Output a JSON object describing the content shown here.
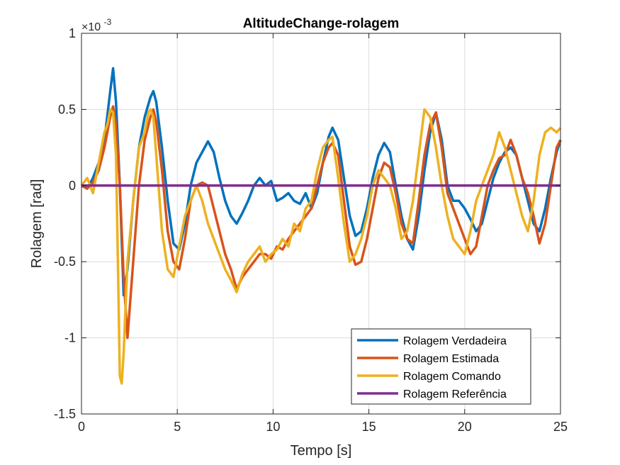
{
  "chart_data": {
    "type": "line",
    "title": "AltitudeChange-rolagem",
    "xlabel": "Tempo [s]",
    "ylabel": "Rolagem [rad]",
    "xlim": [
      0,
      25
    ],
    "ylim": [
      -1.5,
      1
    ],
    "x_ticks": [
      0,
      5,
      10,
      15,
      20,
      25
    ],
    "y_ticks": [
      -1.5,
      -1,
      -0.5,
      0,
      0.5,
      1
    ],
    "x_tick_labels": [
      "0",
      "5",
      "10",
      "15",
      "20",
      "25"
    ],
    "y_tick_labels": [
      "-1.5",
      "-1",
      "-0.5",
      "0",
      "0.5",
      "1"
    ],
    "y_exponent_label": "×10",
    "y_exponent_power": "-3",
    "grid": true,
    "legend_position": "bottom-right",
    "series": [
      {
        "name": "Rolagem Verdadeira",
        "color": "#0072BD",
        "x": [
          0,
          0.3,
          0.6,
          0.9,
          1.2,
          1.5,
          1.65,
          1.8,
          2.0,
          2.2,
          2.4,
          2.7,
          3.0,
          3.3,
          3.6,
          3.75,
          3.9,
          4.2,
          4.5,
          4.8,
          5.1,
          5.4,
          5.7,
          6.0,
          6.3,
          6.6,
          6.9,
          7.2,
          7.5,
          7.8,
          8.1,
          8.4,
          8.7,
          9.0,
          9.3,
          9.6,
          9.9,
          10.2,
          10.5,
          10.8,
          11.1,
          11.4,
          11.7,
          12.0,
          12.3,
          12.6,
          12.9,
          13.1,
          13.4,
          13.7,
          14.0,
          14.3,
          14.6,
          14.9,
          15.2,
          15.5,
          15.8,
          16.1,
          16.4,
          16.7,
          17.0,
          17.3,
          17.6,
          17.9,
          18.2,
          18.5,
          18.8,
          19.1,
          19.4,
          19.7,
          20.0,
          20.3,
          20.6,
          20.9,
          21.2,
          21.5,
          21.8,
          22.1,
          22.4,
          22.7,
          23.0,
          23.3,
          23.6,
          23.9,
          24.2,
          24.5,
          24.8,
          25.0
        ],
        "values": [
          0,
          -0.02,
          0.05,
          0.15,
          0.3,
          0.62,
          0.77,
          0.55,
          0.0,
          -0.72,
          -0.55,
          -0.1,
          0.25,
          0.45,
          0.58,
          0.62,
          0.55,
          0.25,
          -0.1,
          -0.38,
          -0.42,
          -0.25,
          0.0,
          0.15,
          0.22,
          0.29,
          0.22,
          0.05,
          -0.1,
          -0.2,
          -0.25,
          -0.18,
          -0.1,
          0.0,
          0.05,
          0.0,
          0.03,
          -0.1,
          -0.08,
          -0.05,
          -0.1,
          -0.12,
          -0.05,
          -0.15,
          -0.05,
          0.15,
          0.32,
          0.38,
          0.3,
          0.05,
          -0.2,
          -0.33,
          -0.3,
          -0.15,
          0.05,
          0.2,
          0.28,
          0.22,
          0.0,
          -0.2,
          -0.35,
          -0.42,
          -0.2,
          0.1,
          0.35,
          0.48,
          0.3,
          0.0,
          -0.1,
          -0.1,
          -0.15,
          -0.22,
          -0.3,
          -0.25,
          -0.1,
          0.05,
          0.15,
          0.22,
          0.25,
          0.2,
          0.05,
          -0.1,
          -0.25,
          -0.3,
          -0.15,
          0.05,
          0.22,
          0.3
        ]
      },
      {
        "name": "Rolagem Estimada",
        "color": "#D95319",
        "x": [
          0,
          0.3,
          0.6,
          0.9,
          1.2,
          1.5,
          1.65,
          1.8,
          2.0,
          2.2,
          2.4,
          2.7,
          3.0,
          3.3,
          3.6,
          3.75,
          3.9,
          4.2,
          4.5,
          4.8,
          5.1,
          5.4,
          5.7,
          6.0,
          6.3,
          6.6,
          6.9,
          7.2,
          7.5,
          7.8,
          8.1,
          8.4,
          8.7,
          9.0,
          9.3,
          9.6,
          9.9,
          10.2,
          10.5,
          10.8,
          11.1,
          11.4,
          11.7,
          12.0,
          12.3,
          12.6,
          12.9,
          13.1,
          13.4,
          13.7,
          14.0,
          14.3,
          14.6,
          14.9,
          15.2,
          15.5,
          15.8,
          16.1,
          16.4,
          16.7,
          17.0,
          17.3,
          17.6,
          17.9,
          18.2,
          18.5,
          18.8,
          19.1,
          19.4,
          19.7,
          20.0,
          20.3,
          20.6,
          20.9,
          21.2,
          21.5,
          21.8,
          22.1,
          22.4,
          22.7,
          23.0,
          23.3,
          23.6,
          23.9,
          24.2,
          24.5,
          24.8,
          25.0
        ],
        "values": [
          0,
          -0.02,
          0.02,
          0.1,
          0.25,
          0.45,
          0.52,
          0.4,
          0.0,
          -0.6,
          -1.0,
          -0.5,
          0.0,
          0.3,
          0.45,
          0.5,
          0.42,
          0.1,
          -0.3,
          -0.5,
          -0.55,
          -0.35,
          -0.1,
          0.0,
          0.02,
          0.0,
          -0.15,
          -0.3,
          -0.45,
          -0.55,
          -0.68,
          -0.6,
          -0.55,
          -0.5,
          -0.45,
          -0.45,
          -0.48,
          -0.4,
          -0.42,
          -0.35,
          -0.3,
          -0.25,
          -0.2,
          -0.15,
          0.0,
          0.15,
          0.25,
          0.28,
          0.2,
          -0.1,
          -0.4,
          -0.52,
          -0.5,
          -0.35,
          -0.15,
          0.05,
          0.15,
          0.12,
          -0.05,
          -0.25,
          -0.35,
          -0.38,
          -0.1,
          0.2,
          0.4,
          0.48,
          0.25,
          -0.05,
          -0.15,
          -0.25,
          -0.35,
          -0.45,
          -0.4,
          -0.2,
          0.0,
          0.1,
          0.18,
          0.2,
          0.3,
          0.2,
          0.05,
          -0.05,
          -0.2,
          -0.38,
          -0.25,
          0.0,
          0.25,
          0.3
        ]
      },
      {
        "name": "Rolagem Comando",
        "color": "#EDB120",
        "x": [
          0,
          0.3,
          0.6,
          0.9,
          1.2,
          1.35,
          1.5,
          1.65,
          1.8,
          1.9,
          2.0,
          2.1,
          2.2,
          2.4,
          2.7,
          3.0,
          3.3,
          3.5,
          3.6,
          3.75,
          3.9,
          4.2,
          4.5,
          4.8,
          5.1,
          5.4,
          5.7,
          6.0,
          6.3,
          6.6,
          6.9,
          7.2,
          7.5,
          7.8,
          8.1,
          8.4,
          8.7,
          9.0,
          9.3,
          9.6,
          9.9,
          10.2,
          10.5,
          10.8,
          11.1,
          11.4,
          11.7,
          12.0,
          12.3,
          12.6,
          12.9,
          13.1,
          13.4,
          13.7,
          14.0,
          14.3,
          14.6,
          14.9,
          15.2,
          15.5,
          15.8,
          16.1,
          16.4,
          16.7,
          17.0,
          17.3,
          17.6,
          17.9,
          18.2,
          18.5,
          18.8,
          19.1,
          19.4,
          19.7,
          20.0,
          20.3,
          20.6,
          20.9,
          21.2,
          21.5,
          21.8,
          22.1,
          22.4,
          22.7,
          23.0,
          23.3,
          23.6,
          23.9,
          24.2,
          24.5,
          24.8,
          25.0
        ],
        "values": [
          0,
          0.05,
          -0.05,
          0.15,
          0.35,
          0.4,
          0.5,
          0.48,
          0.2,
          -0.5,
          -1.25,
          -1.3,
          -1.1,
          -0.5,
          -0.1,
          0.25,
          0.35,
          0.48,
          0.5,
          0.45,
          0.2,
          -0.3,
          -0.55,
          -0.6,
          -0.4,
          -0.2,
          -0.1,
          0.0,
          -0.1,
          -0.25,
          -0.35,
          -0.45,
          -0.55,
          -0.62,
          -0.7,
          -0.58,
          -0.5,
          -0.45,
          -0.4,
          -0.5,
          -0.45,
          -0.42,
          -0.35,
          -0.4,
          -0.25,
          -0.3,
          -0.15,
          -0.1,
          0.1,
          0.25,
          0.3,
          0.32,
          0.05,
          -0.25,
          -0.5,
          -0.45,
          -0.35,
          -0.2,
          0.0,
          0.1,
          0.05,
          0.0,
          -0.15,
          -0.35,
          -0.3,
          -0.1,
          0.2,
          0.5,
          0.45,
          0.25,
          0.0,
          -0.2,
          -0.35,
          -0.4,
          -0.45,
          -0.3,
          -0.1,
          0.0,
          0.1,
          0.2,
          0.35,
          0.25,
          0.1,
          -0.05,
          -0.2,
          -0.3,
          -0.1,
          0.2,
          0.35,
          0.38,
          0.35,
          0.38
        ]
      },
      {
        "name": "Rolagem Referência",
        "color": "#7E2F8E",
        "x": [
          0,
          25
        ],
        "values": [
          0,
          0
        ]
      }
    ]
  }
}
